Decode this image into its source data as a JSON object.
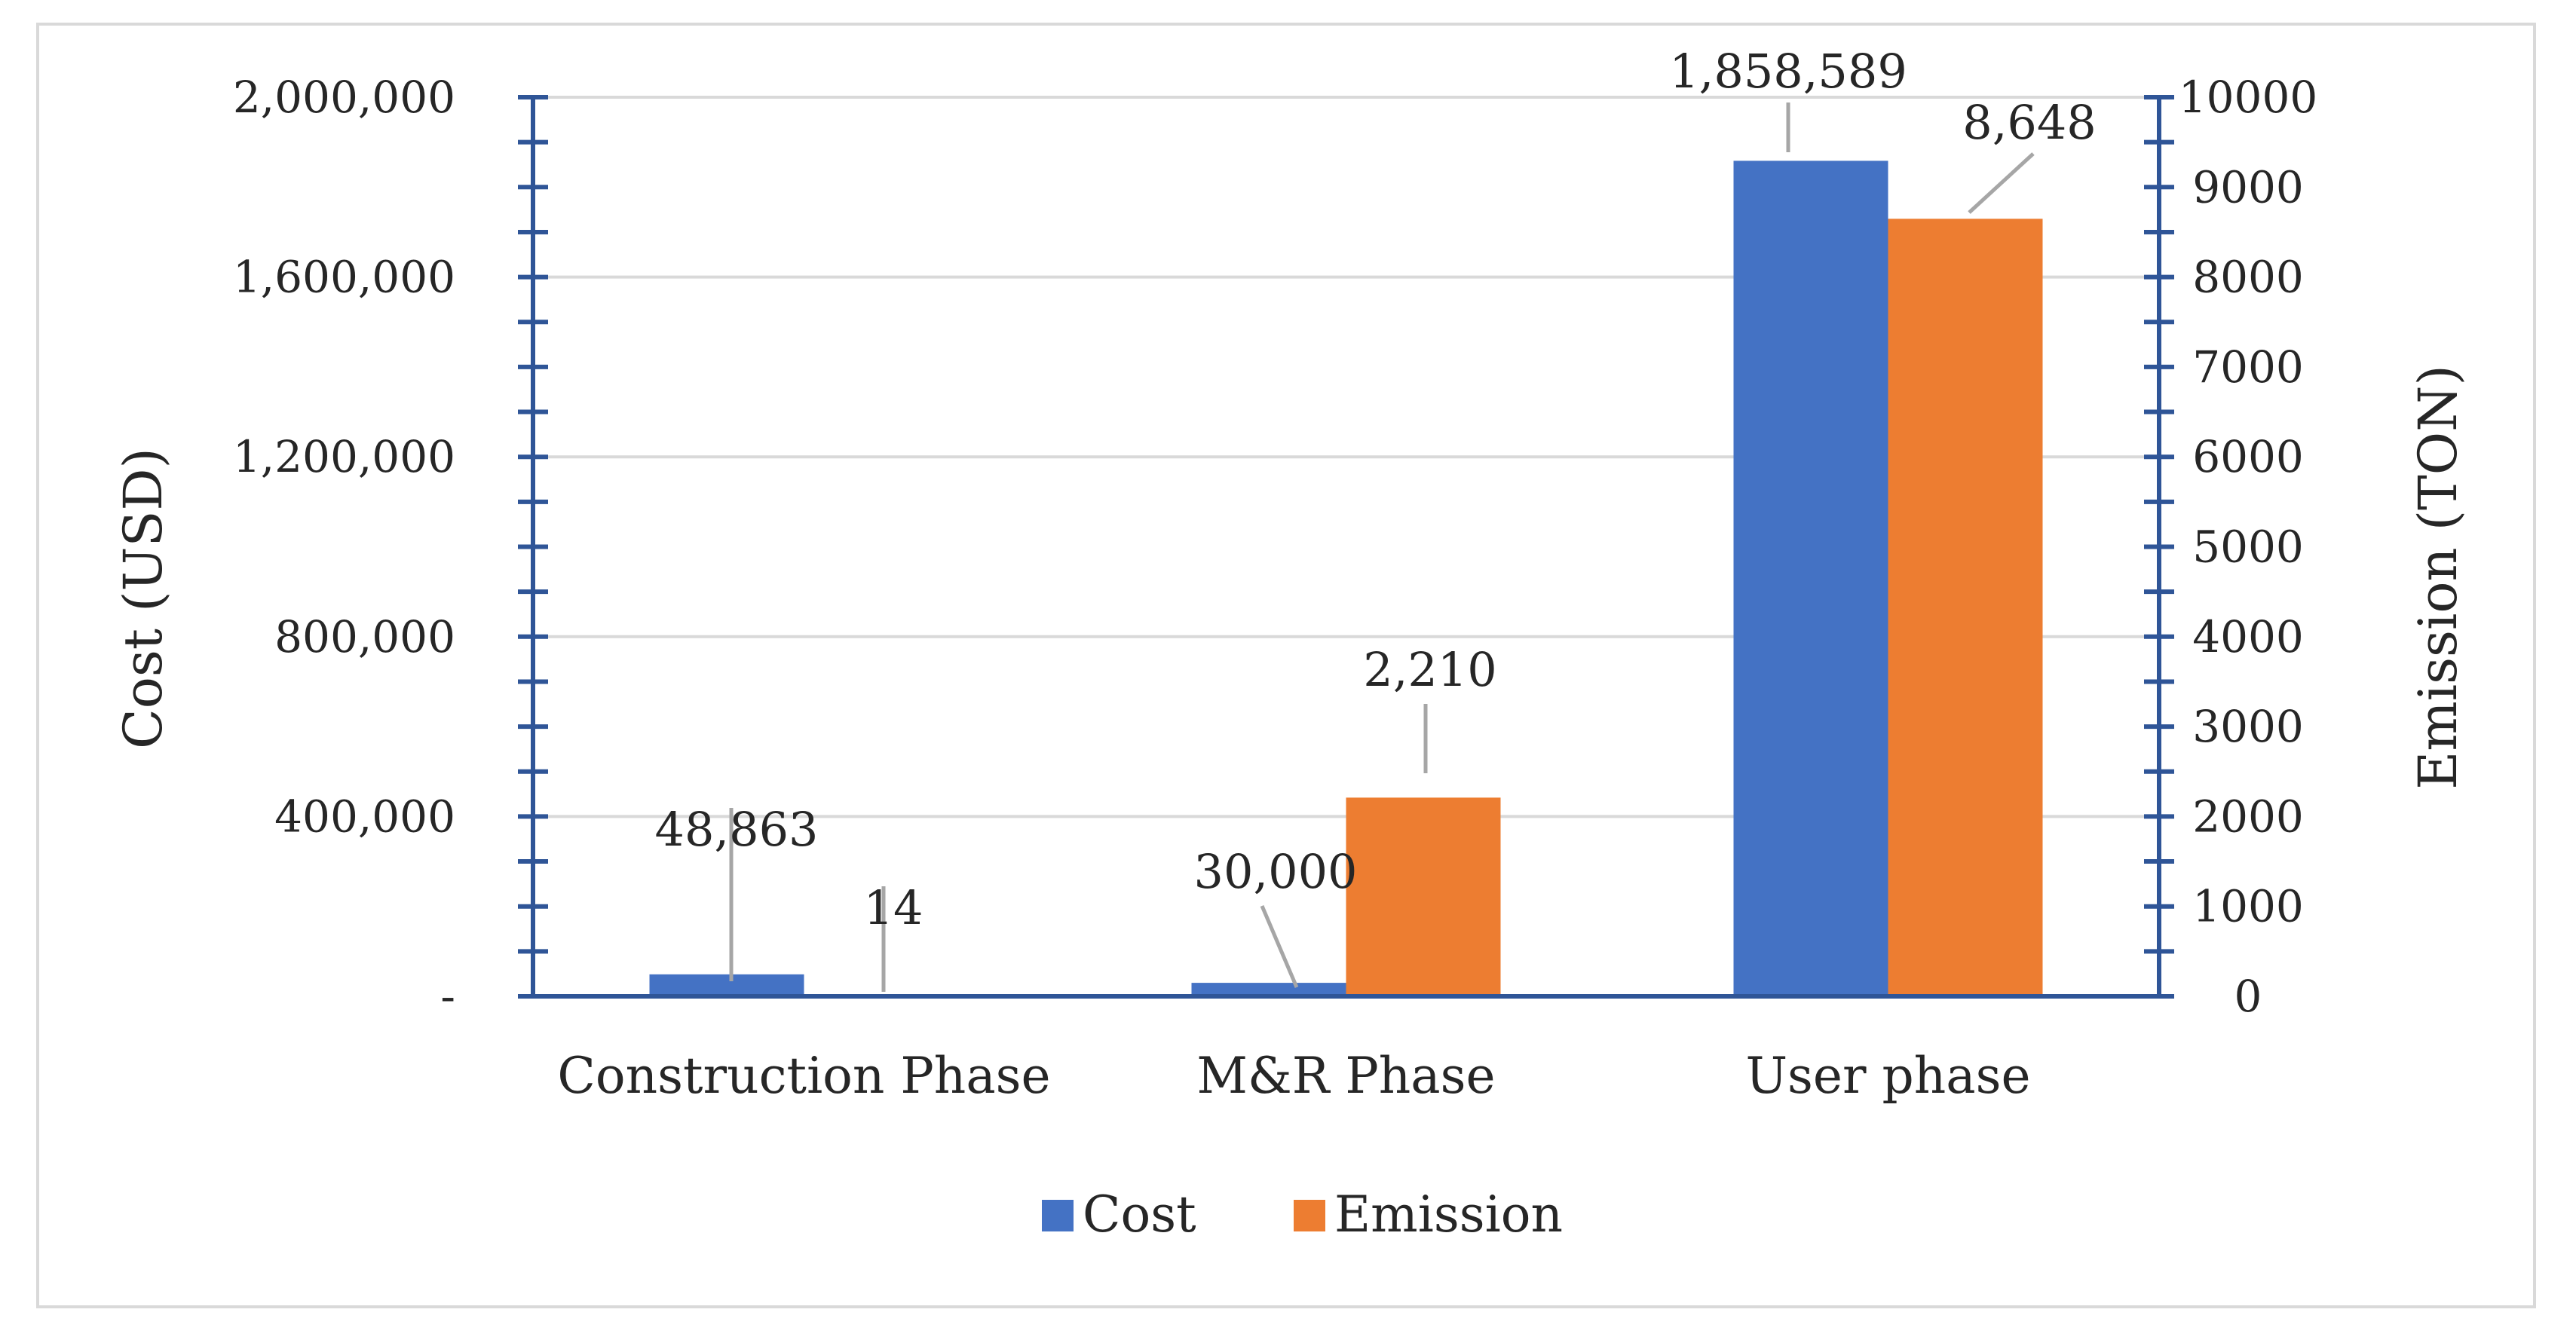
{
  "chart_data": {
    "type": "bar",
    "categories": [
      "Construction Phase",
      "M&R Phase",
      "User phase"
    ],
    "series": [
      {
        "name": "Cost",
        "axis": "left",
        "values": [
          48863,
          30000,
          1858589
        ],
        "labels": [
          "48,863",
          "30,000",
          "1,858,589"
        ],
        "color": "#4472c4"
      },
      {
        "name": "Emission",
        "axis": "right",
        "values": [
          14,
          2210,
          8648
        ],
        "labels": [
          "14",
          "2,210",
          "8,648"
        ],
        "color": "#ed7d31"
      }
    ],
    "ylabel": "Cost (USD)",
    "y2label": "Emission (TON)",
    "ylim": [
      0,
      2000000
    ],
    "y2lim": [
      0,
      10000
    ],
    "y_ticks": [
      "-",
      "400,000",
      "800,000",
      "1,200,000",
      "1,600,000",
      "2,000,000"
    ],
    "y2_ticks": [
      "0",
      "1000",
      "2000",
      "3000",
      "4000",
      "5000",
      "6000",
      "7000",
      "8000",
      "9000",
      "10000"
    ],
    "grid": true,
    "legend": "bottom",
    "axis_color": "#2f5597"
  }
}
